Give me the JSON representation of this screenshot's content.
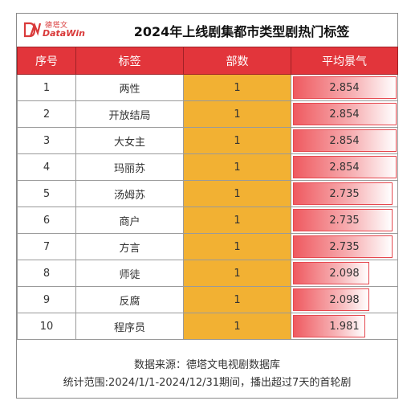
{
  "header": {
    "logo_cn": "德塔文",
    "logo_en": "DataWin",
    "title": "2024年上线剧集都市类型剧热门标签"
  },
  "columns": [
    "序号",
    "标签",
    "部数",
    "平均景气"
  ],
  "chart_data": {
    "type": "table",
    "title": "2024年上线剧集都市类型剧热门标签",
    "columns": [
      "序号",
      "标签",
      "部数",
      "平均景气"
    ],
    "rows": [
      {
        "rank": "1",
        "tag": "两性",
        "count": "1",
        "score": "2.854"
      },
      {
        "rank": "2",
        "tag": "开放结局",
        "count": "1",
        "score": "2.854"
      },
      {
        "rank": "3",
        "tag": "大女主",
        "count": "1",
        "score": "2.854"
      },
      {
        "rank": "4",
        "tag": "玛丽苏",
        "count": "1",
        "score": "2.854"
      },
      {
        "rank": "5",
        "tag": "汤姆苏",
        "count": "1",
        "score": "2.735"
      },
      {
        "rank": "6",
        "tag": "商户",
        "count": "1",
        "score": "2.735"
      },
      {
        "rank": "7",
        "tag": "方言",
        "count": "1",
        "score": "2.735"
      },
      {
        "rank": "8",
        "tag": "师徒",
        "count": "1",
        "score": "2.098"
      },
      {
        "rank": "9",
        "tag": "反腐",
        "count": "1",
        "score": "2.098"
      },
      {
        "rank": "10",
        "tag": "程序员",
        "count": "1",
        "score": "1.981"
      }
    ],
    "score_bar_max": 2.854
  },
  "footer": {
    "source": "数据来源：德塔文电视剧数据库",
    "note": "统计范围:2024/1/1-2024/12/31期间，播出超过7天的首轮剧"
  },
  "colors": {
    "header_red": "#e2353b",
    "count_orange": "#f2b133",
    "bar_red": "#ef5a60"
  }
}
